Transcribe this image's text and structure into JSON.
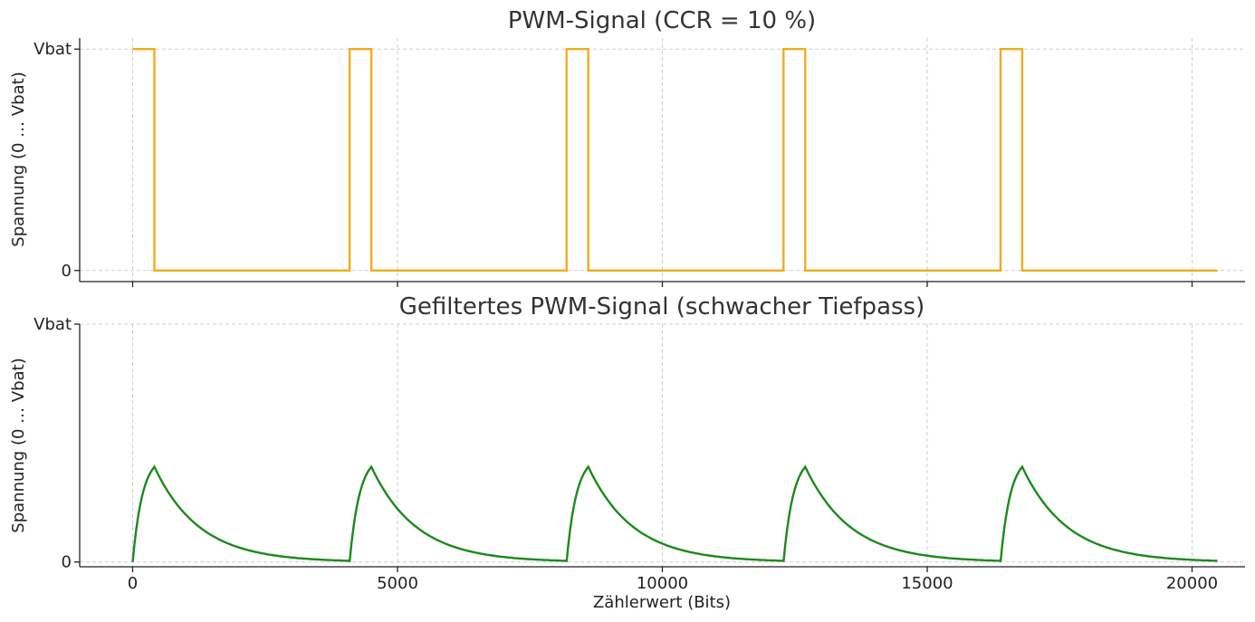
{
  "chart_data": [
    {
      "type": "line",
      "title": "PWM-Signal (CCR = 10 %)",
      "xlabel": "",
      "ylabel": "Spannung (0 … Vbat)",
      "xlim": [
        -1000,
        21000
      ],
      "ylim": [
        -0.05,
        1.05
      ],
      "xticks": [
        0,
        5000,
        10000,
        15000,
        20000
      ],
      "yticks": [
        {
          "value": 0,
          "label": "0"
        },
        {
          "value": 1,
          "label": "Vbat"
        }
      ],
      "grid": true,
      "period": 4096,
      "periods": 5,
      "duty": 0.1,
      "series": [
        {
          "color": "#f0ab1e",
          "x": [
            0,
            409.6,
            409.6,
            4096,
            4096,
            4505.6,
            4505.6,
            8192,
            8192,
            8601.6,
            8601.6,
            12288,
            12288,
            12697.6,
            12697.6,
            16384,
            16384,
            16793.6,
            16793.6,
            20480
          ],
          "y": [
            1,
            1,
            0,
            0,
            1,
            1,
            0,
            0,
            1,
            1,
            0,
            0,
            1,
            1,
            0,
            0,
            1,
            1,
            0,
            0
          ]
        }
      ]
    },
    {
      "type": "line",
      "title": "Gefiltertes PWM-Signal (schwacher Tiefpass)",
      "xlabel": "Zählerwert (Bits)",
      "ylabel": "Spannung (0 … Vbat)",
      "xlim": [
        -1000,
        21000
      ],
      "ylim": [
        -0.02,
        1.0
      ],
      "xticks": [
        0,
        5000,
        10000,
        15000,
        20000
      ],
      "yticks": [
        {
          "value": 0,
          "label": "0"
        },
        {
          "value": 1,
          "label": "Vbat"
        }
      ],
      "grid": true,
      "period": 4096,
      "periods": 5,
      "duty": 0.1,
      "peak": 0.4,
      "series": [
        {
          "color": "#1b8a1b"
        }
      ]
    }
  ]
}
